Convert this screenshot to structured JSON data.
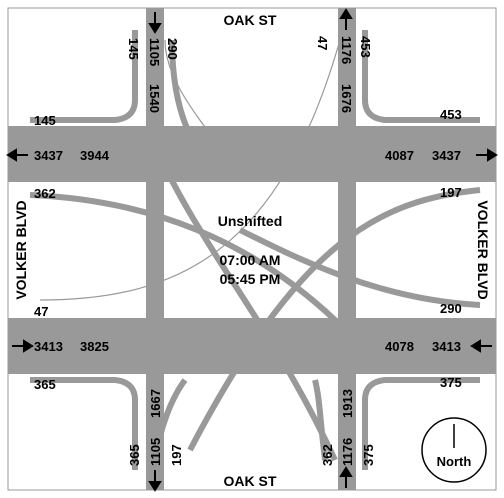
{
  "diagram": {
    "streets": {
      "north": "OAK ST",
      "south": "OAK ST",
      "west": "VOLKER BLVD",
      "east": "VOLKER BLVD"
    },
    "center": {
      "label": "Unshifted",
      "time_am": "07:00 AM",
      "time_pm": "05:45 PM"
    },
    "compass": {
      "label": "North"
    },
    "volumes": {
      "north_approach": {
        "left": "145",
        "inbound": "1105",
        "through": "1540",
        "right": "290"
      },
      "north_departure": {
        "left": "47",
        "outbound": "1176",
        "through": "1676",
        "right": "453"
      },
      "south_approach": {
        "left": "365",
        "inbound": "1105",
        "through": "1667",
        "right": "197"
      },
      "south_departure": {
        "left": "362",
        "outbound": "1176",
        "through": "1913",
        "right": "375"
      },
      "west_top": {
        "turn_upper": "145",
        "outbound": "3437",
        "through": "3944",
        "turn_lower": "362"
      },
      "west_bottom": {
        "turn_upper": "47",
        "inbound": "3413",
        "through": "3825",
        "turn_lower": "365"
      },
      "east_top": {
        "turn_upper": "453",
        "through": "4087",
        "inbound": "3437",
        "turn_lower": "197"
      },
      "east_bottom": {
        "turn_upper": "290",
        "through": "4078",
        "outbound": "3413",
        "turn_lower": "375"
      }
    }
  }
}
